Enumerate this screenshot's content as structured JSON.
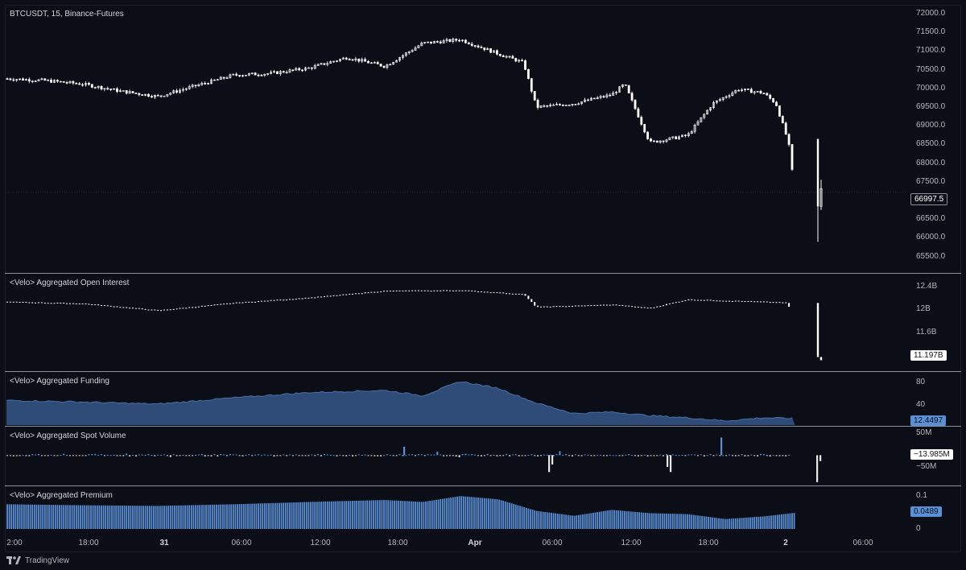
{
  "symbol_title": "BTCUSDT, 15, Binance-Futures",
  "panes": {
    "price": {
      "title": "BTCUSDT, 15, Binance-Futures",
      "ticks": [
        "72000.0",
        "71500.0",
        "71000.0",
        "70500.0",
        "70000.0",
        "69500.0",
        "69000.0",
        "68500.0",
        "68000.0",
        "67500.0",
        "67000.0",
        "66500.0",
        "66000.0",
        "65500.0"
      ],
      "last_value": "66997.5"
    },
    "open_interest": {
      "title": "<Velo> Aggregated Open Interest",
      "ticks": [
        "12.4B",
        "12B",
        "11.6B"
      ],
      "last_value": "11.197B"
    },
    "funding": {
      "title": "<Velo> Aggregated Funding",
      "ticks": [
        "80",
        "40"
      ],
      "last_value": "12.4497"
    },
    "spot_volume": {
      "title": "<Velo> Aggregated Spot Volume",
      "ticks": [
        "50M",
        "−50M"
      ],
      "last_value": "−13.985M"
    },
    "premium": {
      "title": "<Velo> Aggregated Premium",
      "ticks": [
        "0.1",
        "0"
      ],
      "last_value": "0.0489"
    }
  },
  "time_axis": [
    "2:00",
    "18:00",
    "31",
    "06:00",
    "12:00",
    "18:00",
    "Apr",
    "06:00",
    "12:00",
    "18:00",
    "2",
    "06:00"
  ],
  "brand": "TradingView",
  "colors": {
    "background": "#0b0e17",
    "candle": "#ffffff",
    "funding_fill": "#2f4c78",
    "funding_line": "#4a6fa8",
    "bar_blue": "#5b8fd6",
    "bar_white": "#e8e8e8",
    "text": "#d1d4dc"
  },
  "chart_data": [
    {
      "type": "line",
      "title": "BTCUSDT, 15, Binance-Futures",
      "x": [
        "30 12:00",
        "30 15:00",
        "30 18:00",
        "30 21:00",
        "31 00:00",
        "31 03:00",
        "31 06:00",
        "31 09:00",
        "31 12:00",
        "31 15:00",
        "31 18:00",
        "31 21:00",
        "Apr 1 00:00",
        "Apr 1 03:00",
        "Apr 1 05:00",
        "Apr 1 06:00",
        "Apr 1 09:00",
        "Apr 1 12:00",
        "Apr 1 13:00",
        "Apr 1 15:00",
        "Apr 1 18:00",
        "Apr 1 20:00",
        "Apr 1 22:00",
        "Apr 2 00:00",
        "Apr 2 01:00",
        "Apr 2 02:00",
        "Apr 2 02:30"
      ],
      "series": [
        {
          "values": [
            70200,
            70150,
            70050,
            69850,
            69700,
            70000,
            70300,
            70350,
            70500,
            70800,
            70550,
            71200,
            71300,
            70900,
            70650,
            69400,
            69500,
            69750,
            70050,
            68400,
            68600,
            69500,
            69900,
            69800,
            69500,
            68400,
            66997.5
          ]
        }
      ],
      "ylim": [
        65200,
        72100
      ]
    },
    {
      "type": "line",
      "title": "<Velo> Aggregated Open Interest",
      "x": [
        "30 12:00",
        "30 18:00",
        "31 00:00",
        "31 06:00",
        "31 12:00",
        "31 18:00",
        "Apr 1 00:00",
        "Apr 1 05:00",
        "Apr 1 06:00",
        "Apr 1 12:00",
        "Apr 1 15:00",
        "Apr 1 18:00",
        "Apr 2 00:00",
        "Apr 2 02:00",
        "Apr 2 02:30"
      ],
      "series": [
        {
          "values": [
            12.18,
            12.15,
            12.03,
            12.16,
            12.25,
            12.37,
            12.38,
            12.31,
            12.09,
            12.13,
            12.07,
            12.22,
            12.18,
            12.16,
            11.197
          ]
        }
      ],
      "ylim": [
        11.1,
        12.5
      ]
    },
    {
      "type": "area",
      "title": "<Velo> Aggregated Funding",
      "x": [
        "30 12:00",
        "30 18:00",
        "31 00:00",
        "31 06:00",
        "31 12:00",
        "31 18:00",
        "31 21:00",
        "Apr 1 00:00",
        "Apr 1 03:00",
        "Apr 1 06:00",
        "Apr 1 09:00",
        "Apr 1 12:00",
        "Apr 1 15:00",
        "Apr 1 18:00",
        "Apr 1 21:00",
        "Apr 2 00:00",
        "Apr 2 02:30"
      ],
      "series": [
        {
          "values": [
            47,
            44,
            40,
            52,
            62,
            66,
            56,
            83,
            70,
            42,
            22,
            25,
            18,
            14,
            8,
            14,
            12.4497
          ]
        }
      ],
      "ylim": [
        0,
        95
      ]
    },
    {
      "type": "bar",
      "title": "<Velo> Aggregated Spot Volume",
      "ylim": [
        -70,
        60
      ]
    },
    {
      "type": "bar",
      "title": "<Velo> Aggregated Premium",
      "x": [
        "30 12:00",
        "30 18:00",
        "31 00:00",
        "31 06:00",
        "31 12:00",
        "31 18:00",
        "31 21:00",
        "Apr 1 00:00",
        "Apr 1 03:00",
        "Apr 1 06:00",
        "Apr 1 09:00",
        "Apr 1 12:00",
        "Apr 1 15:00",
        "Apr 1 18:00",
        "Apr 1 21:00",
        "Apr 2 00:00",
        "Apr 2 02:30"
      ],
      "series": [
        {
          "values": [
            0.075,
            0.072,
            0.07,
            0.075,
            0.082,
            0.088,
            0.082,
            0.1,
            0.09,
            0.055,
            0.04,
            0.058,
            0.048,
            0.045,
            0.03,
            0.038,
            0.0489
          ]
        }
      ],
      "ylim": [
        0,
        0.115
      ]
    }
  ]
}
